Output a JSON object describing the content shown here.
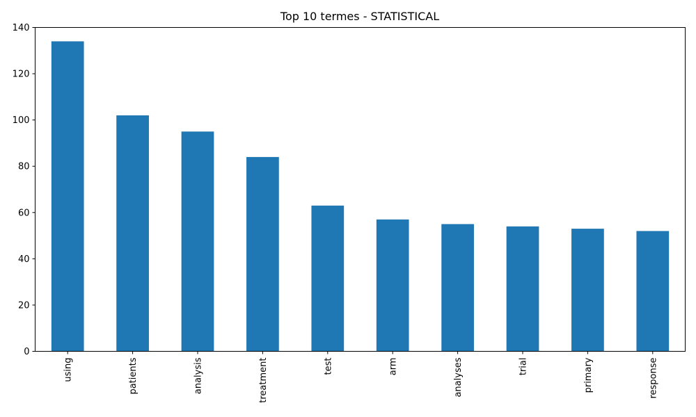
{
  "chart_data": {
    "type": "bar",
    "title": "Top 10 termes - STATISTICAL",
    "xlabel": "",
    "ylabel": "",
    "categories": [
      "using",
      "patients",
      "analysis",
      "treatment",
      "test",
      "arm",
      "analyses",
      "trial",
      "primary",
      "response"
    ],
    "values": [
      134,
      102,
      95,
      84,
      63,
      57,
      55,
      54,
      53,
      52
    ],
    "ylim": [
      0,
      140
    ],
    "yticks": [
      0,
      20,
      40,
      60,
      80,
      100,
      120,
      140
    ],
    "grid": false,
    "legend": "none",
    "bar_color": "#1f77b4",
    "x_tick_rotation": "vertical"
  }
}
